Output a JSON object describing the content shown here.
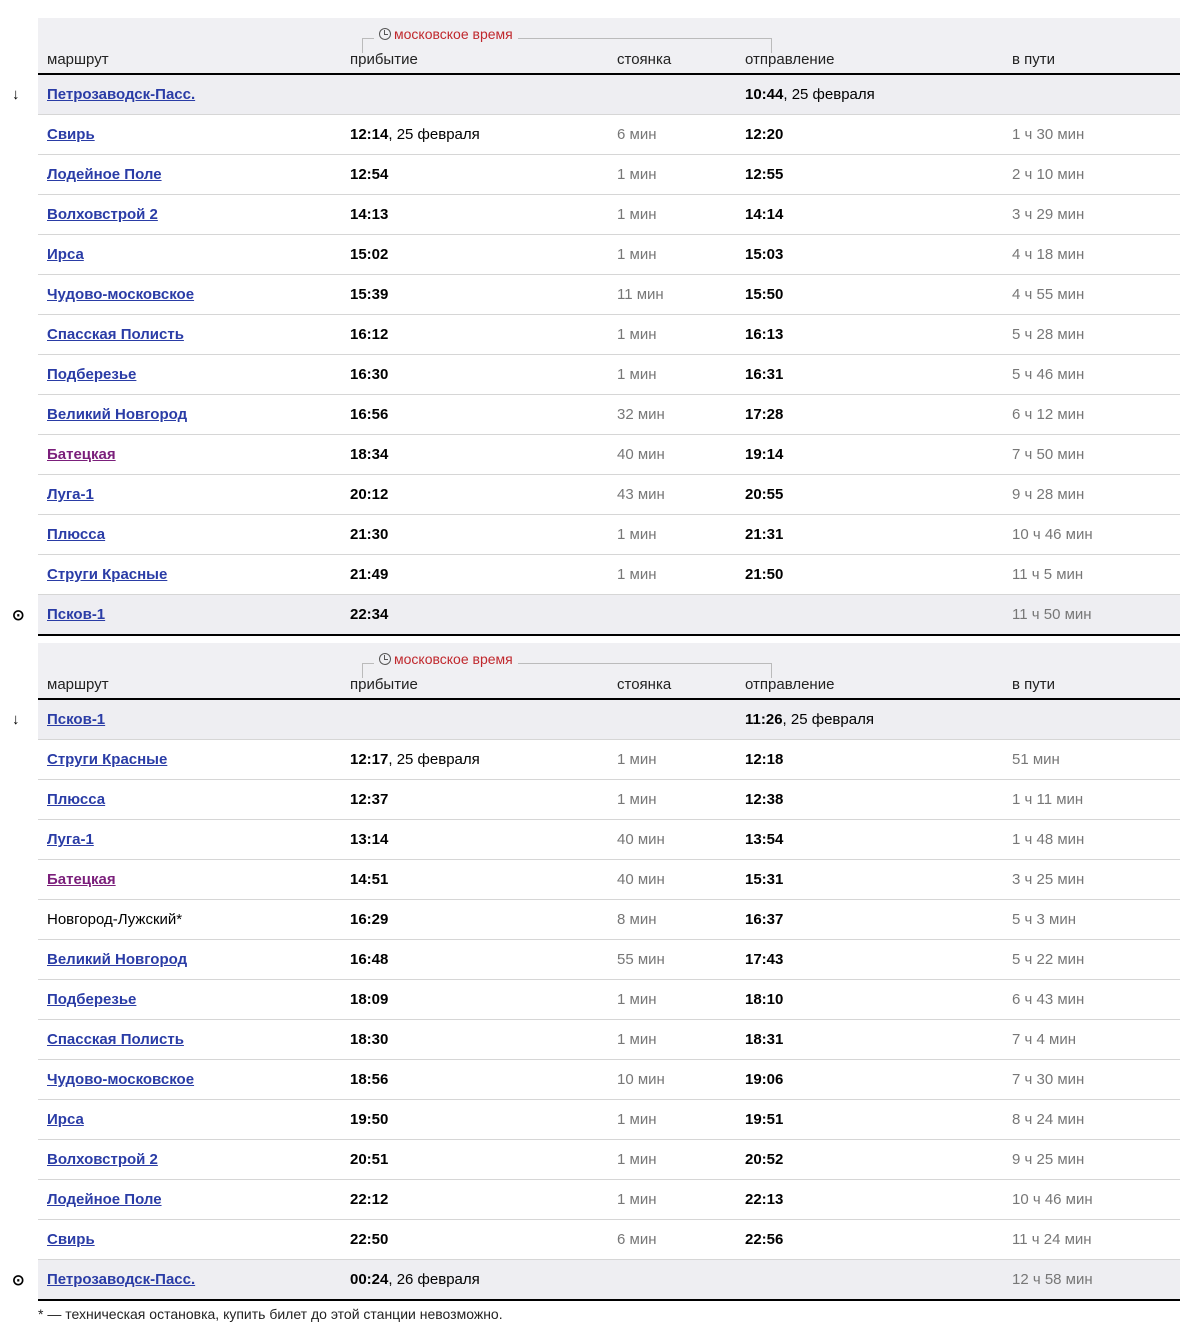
{
  "header": {
    "route": "маршрут",
    "arrival": "прибытие",
    "stop": "стоянка",
    "departure": "отправление",
    "travel": "в пути",
    "moscow_time": "московское время"
  },
  "tables": [
    {
      "rows": [
        {
          "station": "Петрозаводск-Пасс.",
          "link": true,
          "arr": "",
          "arr_date": "",
          "stop": "",
          "dep": "10:44",
          "dep_date": ", 25 февраля",
          "travel": "",
          "mark": "start"
        },
        {
          "station": "Свирь",
          "link": true,
          "arr": "12:14",
          "arr_date": ", 25 февраля",
          "stop": "6 мин",
          "dep": "12:20",
          "travel": "1 ч 30 мин"
        },
        {
          "station": "Лодейное Поле",
          "link": true,
          "arr": "12:54",
          "stop": "1 мин",
          "dep": "12:55",
          "travel": "2 ч 10 мин"
        },
        {
          "station": "Волховстрой 2",
          "link": true,
          "arr": "14:13",
          "stop": "1 мин",
          "dep": "14:14",
          "travel": "3 ч 29 мин"
        },
        {
          "station": "Ирса",
          "link": true,
          "arr": "15:02",
          "stop": "1 мин",
          "dep": "15:03",
          "travel": "4 ч 18 мин"
        },
        {
          "station": "Чудово-московское",
          "link": true,
          "arr": "15:39",
          "stop": "11 мин",
          "dep": "15:50",
          "travel": "4 ч 55 мин"
        },
        {
          "station": "Спасская Полисть",
          "link": true,
          "arr": "16:12",
          "stop": "1 мин",
          "dep": "16:13",
          "travel": "5 ч 28 мин"
        },
        {
          "station": "Подберезье",
          "link": true,
          "arr": "16:30",
          "stop": "1 мин",
          "dep": "16:31",
          "travel": "5 ч 46 мин"
        },
        {
          "station": "Великий Новгород",
          "link": true,
          "arr": "16:56",
          "stop": "32 мин",
          "dep": "17:28",
          "travel": "6 ч 12 мин"
        },
        {
          "station": "Батецкая",
          "link": true,
          "visited": true,
          "arr": "18:34",
          "stop": "40 мин",
          "dep": "19:14",
          "travel": "7 ч 50 мин"
        },
        {
          "station": "Луга-1",
          "link": true,
          "arr": "20:12",
          "stop": "43 мин",
          "dep": "20:55",
          "travel": "9 ч 28 мин"
        },
        {
          "station": "Плюсса",
          "link": true,
          "arr": "21:30",
          "stop": "1 мин",
          "dep": "21:31",
          "travel": "10 ч 46 мин"
        },
        {
          "station": "Струги Красные",
          "link": true,
          "arr": "21:49",
          "stop": "1 мин",
          "dep": "21:50",
          "travel": "11 ч 5 мин"
        },
        {
          "station": "Псков-1",
          "link": true,
          "arr": "22:34",
          "stop": "",
          "dep": "",
          "travel": "11 ч 50 мин",
          "mark": "end"
        }
      ]
    },
    {
      "rows": [
        {
          "station": "Псков-1",
          "link": true,
          "arr": "",
          "stop": "",
          "dep": "11:26",
          "dep_date": ", 25 февраля",
          "travel": "",
          "mark": "start"
        },
        {
          "station": "Струги Красные",
          "link": true,
          "arr": "12:17",
          "arr_date": ", 25 февраля",
          "stop": "1 мин",
          "dep": "12:18",
          "travel": "51 мин"
        },
        {
          "station": "Плюсса",
          "link": true,
          "arr": "12:37",
          "stop": "1 мин",
          "dep": "12:38",
          "travel": "1 ч 11 мин"
        },
        {
          "station": "Луга-1",
          "link": true,
          "arr": "13:14",
          "stop": "40 мин",
          "dep": "13:54",
          "travel": "1 ч 48 мин"
        },
        {
          "station": "Батецкая",
          "link": true,
          "visited": true,
          "arr": "14:51",
          "stop": "40 мин",
          "dep": "15:31",
          "travel": "3 ч 25 мин"
        },
        {
          "station": "Новгород-Лужский*",
          "link": false,
          "arr": "16:29",
          "stop": "8 мин",
          "dep": "16:37",
          "travel": "5 ч 3 мин"
        },
        {
          "station": "Великий Новгород",
          "link": true,
          "arr": "16:48",
          "stop": "55 мин",
          "dep": "17:43",
          "travel": "5 ч 22 мин"
        },
        {
          "station": "Подберезье",
          "link": true,
          "arr": "18:09",
          "stop": "1 мин",
          "dep": "18:10",
          "travel": "6 ч 43 мин"
        },
        {
          "station": "Спасская Полисть",
          "link": true,
          "arr": "18:30",
          "stop": "1 мин",
          "dep": "18:31",
          "travel": "7 ч 4 мин"
        },
        {
          "station": "Чудово-московское",
          "link": true,
          "arr": "18:56",
          "stop": "10 мин",
          "dep": "19:06",
          "travel": "7 ч 30 мин"
        },
        {
          "station": "Ирса",
          "link": true,
          "arr": "19:50",
          "stop": "1 мин",
          "dep": "19:51",
          "travel": "8 ч 24 мин"
        },
        {
          "station": "Волховстрой 2",
          "link": true,
          "arr": "20:51",
          "stop": "1 мин",
          "dep": "20:52",
          "travel": "9 ч 25 мин"
        },
        {
          "station": "Лодейное Поле",
          "link": true,
          "arr": "22:12",
          "stop": "1 мин",
          "dep": "22:13",
          "travel": "10 ч 46 мин"
        },
        {
          "station": "Свирь",
          "link": true,
          "arr": "22:50",
          "stop": "6 мин",
          "dep": "22:56",
          "travel": "11 ч 24 мин"
        },
        {
          "station": "Петрозаводск-Пасс.",
          "link": true,
          "arr": "00:24",
          "arr_date": ", 26 февраля",
          "stop": "",
          "dep": "",
          "travel": "12 ч 58 мин",
          "mark": "end"
        }
      ]
    }
  ],
  "footnote": "* — техническая остановка, купить билет до этой станции невозможно.",
  "colors": {
    "link": "#2a3ca6",
    "visited": "#7b1f7b",
    "moscow_time": "#c0282d"
  },
  "icons": {
    "start": "arrow-down-icon",
    "end": "target-icon",
    "clock": "clock-icon"
  }
}
